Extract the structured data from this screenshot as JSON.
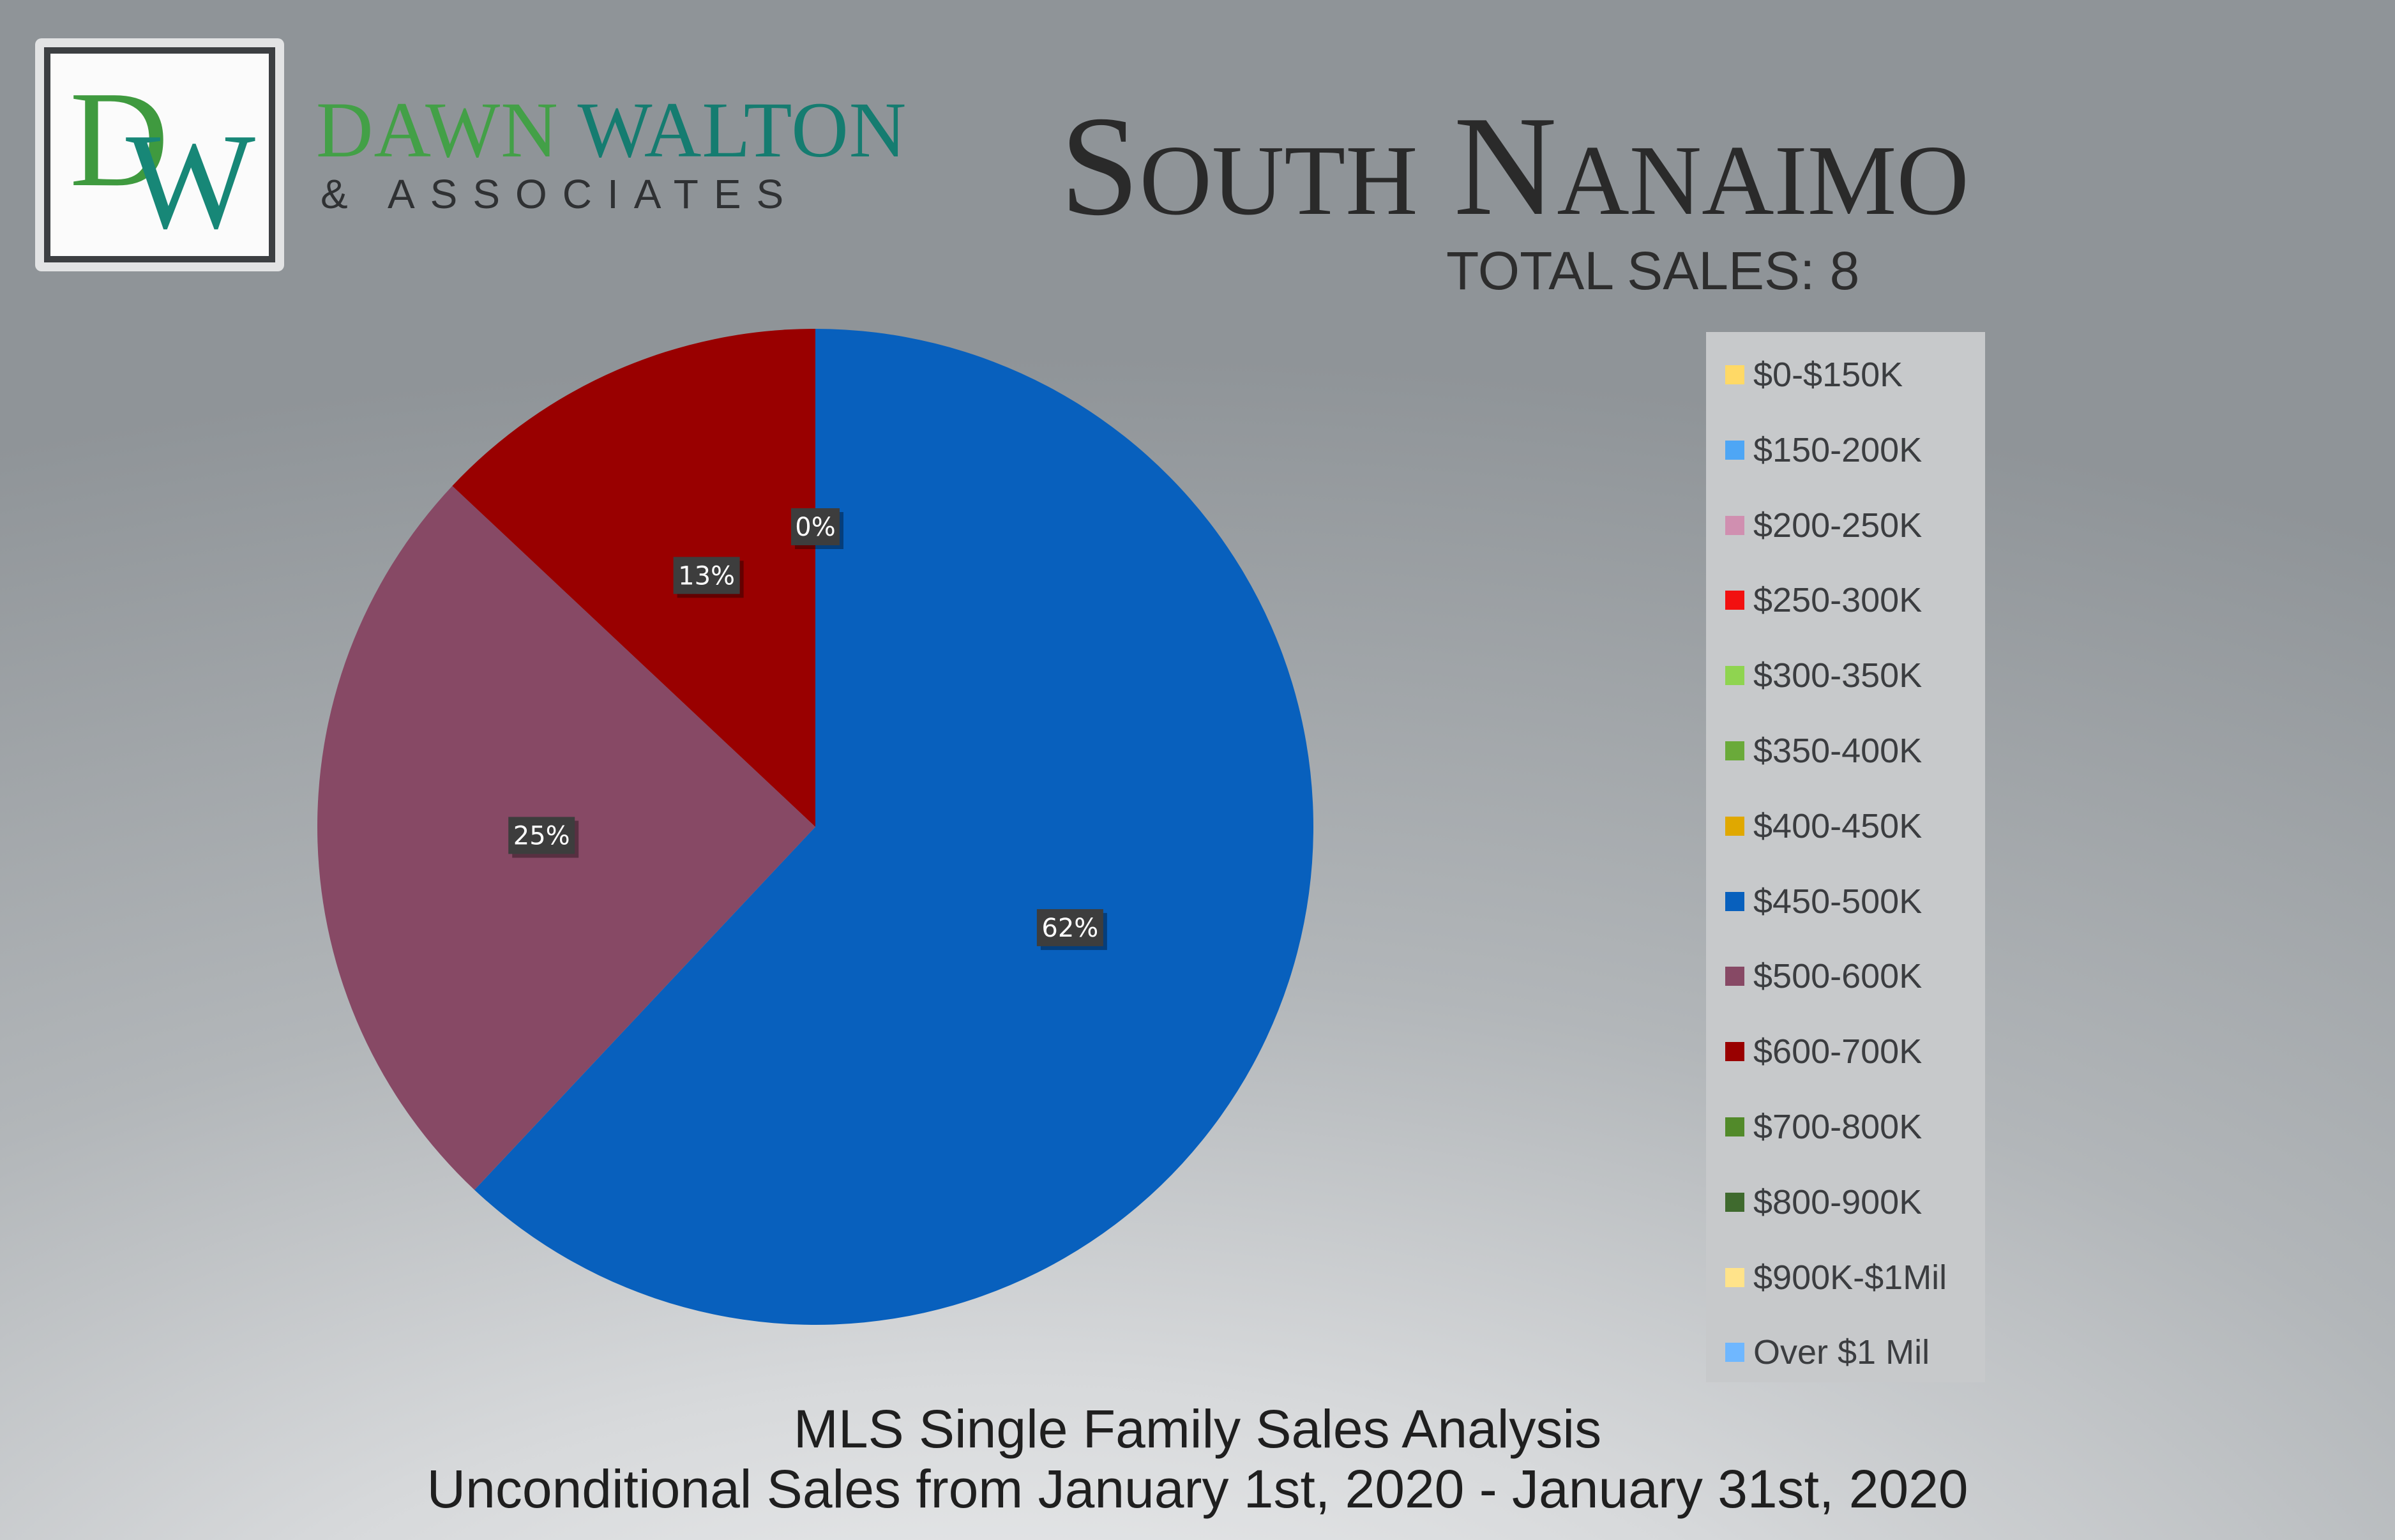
{
  "brand": {
    "monogram_d": "D",
    "monogram_w": "W",
    "name_part1": "DAWN",
    "name_part2": "WALTON",
    "subtitle": "& ASSOCIATES"
  },
  "header": {
    "title": "South Nanaimo",
    "total_sales": "TOTAL SALES: 8"
  },
  "footer": {
    "line1": "MLS Single Family Sales Analysis",
    "line2": "Unconditional Sales from January 1st, 2020 - January 31st, 2020"
  },
  "chart_data": {
    "type": "pie",
    "legend_position": "right",
    "categories": [
      {
        "label": "$0-$150K",
        "color": "#ffd966",
        "value": 0
      },
      {
        "label": "$150-200K",
        "color": "#4ea6f5",
        "value": 0
      },
      {
        "label": "$200-250K",
        "color": "#d08fb0",
        "value": 0
      },
      {
        "label": "$250-300K",
        "color": "#f21010",
        "value": 0
      },
      {
        "label": "$300-350K",
        "color": "#8fd450",
        "value": 0
      },
      {
        "label": "$350-400K",
        "color": "#6aaa3a",
        "value": 0
      },
      {
        "label": "$400-450K",
        "color": "#e0a800",
        "value": 0
      },
      {
        "label": "$450-500K",
        "color": "#0860bd",
        "value": 62,
        "data_label": "62%"
      },
      {
        "label": "$500-600K",
        "color": "#874965",
        "value": 25,
        "data_label": "25%"
      },
      {
        "label": "$600-700K",
        "color": "#990000",
        "value": 13,
        "data_label": "13%"
      },
      {
        "label": "$700-800K",
        "color": "#528a2a",
        "value": 0,
        "data_label": "0%"
      },
      {
        "label": "$800-900K",
        "color": "#3f6a2e",
        "value": 0
      },
      {
        "label": "$900K-$1Mil",
        "color": "#ffe38a",
        "value": 0
      },
      {
        "label": "Over $1 Mil",
        "color": "#6fb7ff",
        "value": 0
      }
    ]
  }
}
